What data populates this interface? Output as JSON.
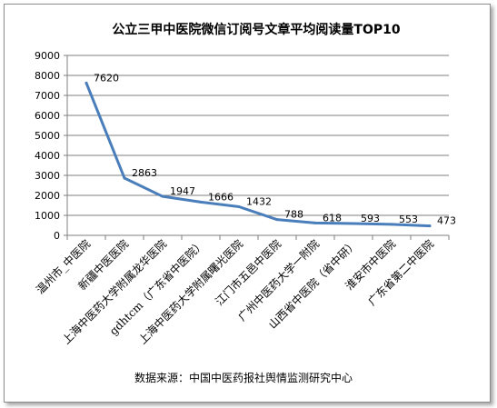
{
  "chart_data": {
    "type": "line",
    "title": "公立三甲中医院微信订阅号文章平均阅读量TOP10",
    "categories": [
      "温州市_中医院",
      "新疆中医医院",
      "上海中医药大学附属龙华医院",
      "gdhtcm（广东省中医院）",
      "上海中医药大学附属曙光医院",
      "江门市五邑中医院",
      "广州中医药大学一附院",
      "山西省中医院（省中研）",
      "淮安市中医院",
      "广东省第二中医院"
    ],
    "values": [
      7620,
      2863,
      1947,
      1666,
      1432,
      788,
      618,
      593,
      553,
      473
    ],
    "ylim": [
      0,
      9000
    ],
    "yticks": [
      "0",
      "1000",
      "2000",
      "3000",
      "4000",
      "5000",
      "6000",
      "7000",
      "8000",
      "9000"
    ],
    "xlabel": "",
    "ylabel": "",
    "grid": true,
    "line_color": "#4a7ebb",
    "source": "数据来源：中国中医药报社舆情监测研究中心"
  }
}
